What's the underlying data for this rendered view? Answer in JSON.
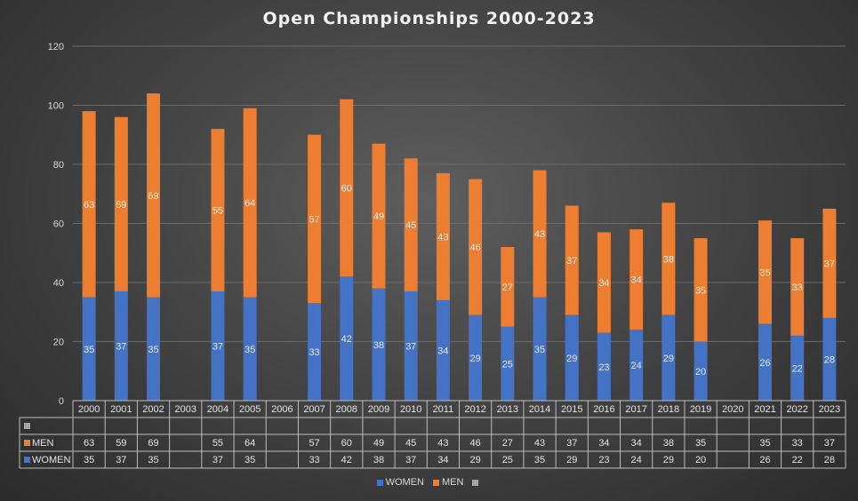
{
  "chart_data": {
    "type": "bar",
    "stacked": true,
    "title": "Open Championships  2000-2023",
    "categories": [
      "2000",
      "2001",
      "2002",
      "2003",
      "2004",
      "2005",
      "2006",
      "2007",
      "2008",
      "2009",
      "2010",
      "2011",
      "2012",
      "2013",
      "2014",
      "2015",
      "2016",
      "2017",
      "2018",
      "2019",
      "2020",
      "2021",
      "2022",
      "2023"
    ],
    "series": [
      {
        "name": "WOMEN",
        "color": "#4472c4",
        "values": [
          35,
          37,
          35,
          null,
          37,
          35,
          null,
          33,
          42,
          38,
          37,
          34,
          29,
          25,
          35,
          29,
          23,
          24,
          29,
          20,
          null,
          26,
          22,
          28
        ]
      },
      {
        "name": "MEN",
        "color": "#ed7d31",
        "values": [
          63,
          59,
          69,
          null,
          55,
          64,
          null,
          57,
          60,
          49,
          45,
          43,
          46,
          27,
          43,
          37,
          34,
          34,
          38,
          35,
          null,
          35,
          33,
          37
        ]
      },
      {
        "name": "",
        "color": "#a5a5a5",
        "values": [
          null,
          null,
          null,
          null,
          null,
          null,
          null,
          null,
          null,
          null,
          null,
          null,
          null,
          null,
          null,
          null,
          null,
          null,
          null,
          null,
          null,
          null,
          null,
          null
        ]
      }
    ],
    "ylim": [
      0,
      120
    ],
    "yticks": [
      0,
      20,
      40,
      60,
      80,
      100,
      120
    ],
    "xlabel": "",
    "ylabel": "",
    "grid": true,
    "data_table": true,
    "legend_position": "bottom"
  }
}
